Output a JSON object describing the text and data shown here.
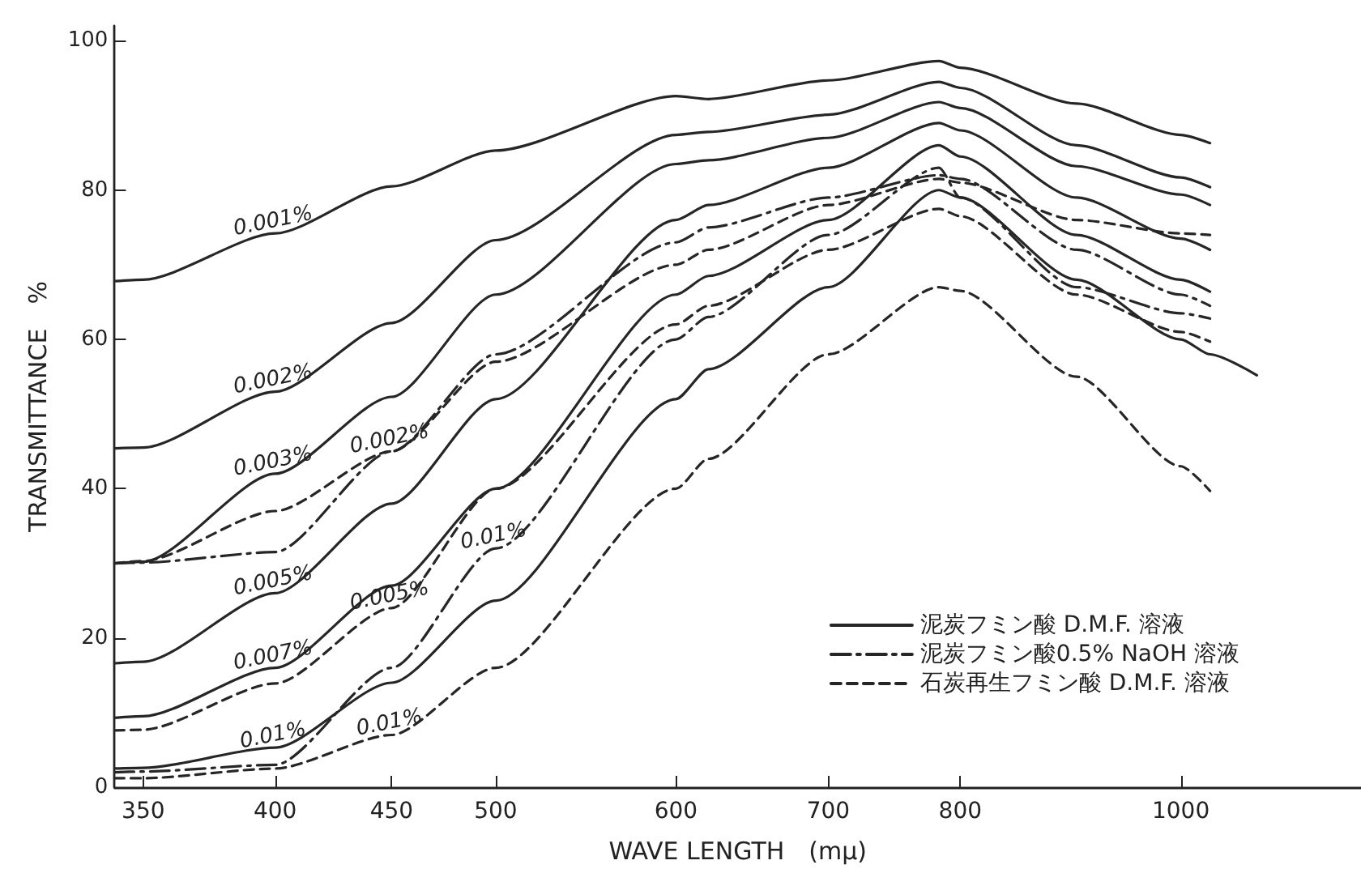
{
  "chart_data": {
    "type": "line",
    "xlabel": "WAVE LENGTH　(mμ)",
    "ylabel": "TRANSMITTANCE　%",
    "x": [
      340,
      350,
      400,
      450,
      500,
      600,
      620,
      700,
      783,
      800,
      900,
      1000,
      1030
    ],
    "xlim": [
      340,
      1200
    ],
    "xticks": [
      350,
      400,
      450,
      500,
      600,
      700,
      800,
      1000
    ],
    "log": "x",
    "ylim": [
      0,
      102
    ],
    "yticks": [
      0,
      20,
      40,
      60,
      80,
      100
    ],
    "grid": false,
    "legend": "bottom right",
    "marker": "none",
    "series": [
      {
        "name": "泥炭フミン酸 D.M.F. 溶液",
        "color": "#262626",
        "line_style": "solid",
        "values": [
          67.8,
          68,
          74.2,
          80.5,
          85.3,
          92.6,
          92.2,
          94.7,
          97.3,
          96.4,
          91.6,
          87.4,
          86.3
        ]
      },
      {
        "color": "#262626",
        "line_style": "solid",
        "values": [
          45.4,
          45.5,
          53,
          62.2,
          73.3,
          87.4,
          87.8,
          90.1,
          94.5,
          93.7,
          86,
          81.7,
          80.4
        ]
      },
      {
        "color": "#262626",
        "line_style": "solid",
        "values": [
          30,
          30.2,
          42,
          52.3,
          66,
          83.5,
          84,
          87,
          91.8,
          91,
          83.2,
          79.4,
          78
        ]
      },
      {
        "color": "#262626",
        "line_style": "solid",
        "values": [
          16.6,
          16.8,
          26,
          38,
          52,
          76,
          78,
          83,
          89,
          88,
          79,
          73.5,
          72
        ]
      },
      {
        "color": "#262626",
        "line_style": "solid",
        "values": [
          9.3,
          9.5,
          16,
          27,
          40,
          66,
          68.5,
          76,
          86,
          84.5,
          74,
          68,
          66.4
        ]
      },
      {
        "color": "#262626",
        "line_style": "solid",
        "x": [
          340,
          350,
          400,
          450,
          500,
          600,
          620,
          700,
          783,
          800,
          900,
          1000,
          1030,
          1080
        ],
        "values": [
          2.5,
          2.6,
          5.3,
          14,
          25,
          52,
          56,
          67,
          80,
          79,
          68,
          60,
          58,
          55.2
        ]
      },
      {
        "name": "泥炭フミン酸0.5% NaOH 溶液",
        "color": "#262626",
        "line_style": "dashdot",
        "values": [
          30,
          30.1,
          31.5,
          45,
          58,
          73,
          75,
          79,
          82,
          81.5,
          72,
          66,
          64.5
        ]
      },
      {
        "color": "#262626",
        "line_style": "dashdot",
        "values": [
          2,
          2.1,
          3,
          16,
          32,
          60,
          63,
          74,
          83,
          79,
          67,
          63.5,
          62.8
        ]
      },
      {
        "name": "石炭再生フミン酸 D.M.F. 溶液",
        "color": "#262626",
        "line_style": "dashed",
        "values": [
          30,
          30.3,
          37,
          45,
          57,
          70,
          72,
          78,
          81.5,
          81,
          76,
          74.2,
          74
        ]
      },
      {
        "color": "#262626",
        "line_style": "dashed",
        "values": [
          7.6,
          7.7,
          13.9,
          24,
          40,
          62,
          64.5,
          72,
          77.5,
          76.5,
          66,
          61,
          59.7
        ]
      },
      {
        "color": "#262626",
        "line_style": "dashed",
        "values": [
          1.2,
          1.2,
          2.5,
          7,
          16,
          40,
          44,
          58,
          67,
          66.5,
          55,
          43,
          39.7
        ]
      }
    ],
    "annotations": [
      {
        "text": "0.001%",
        "x": 400,
        "y": 74.2
      },
      {
        "text": "0.002%",
        "x": 400,
        "y": 53
      },
      {
        "text": "0.003%",
        "x": 400,
        "y": 42
      },
      {
        "text": "0.005%",
        "x": 400,
        "y": 26
      },
      {
        "text": "0.007%",
        "x": 400,
        "y": 16
      },
      {
        "text": "0.01%",
        "x": 400,
        "y": 5.3
      },
      {
        "text": "0.002%",
        "x": 450,
        "y": 45
      },
      {
        "text": "0.005%",
        "x": 450,
        "y": 24
      },
      {
        "text": "0.01%",
        "x": 450,
        "y": 7
      },
      {
        "text": "0.01%",
        "x": 500,
        "y": 32
      }
    ]
  }
}
